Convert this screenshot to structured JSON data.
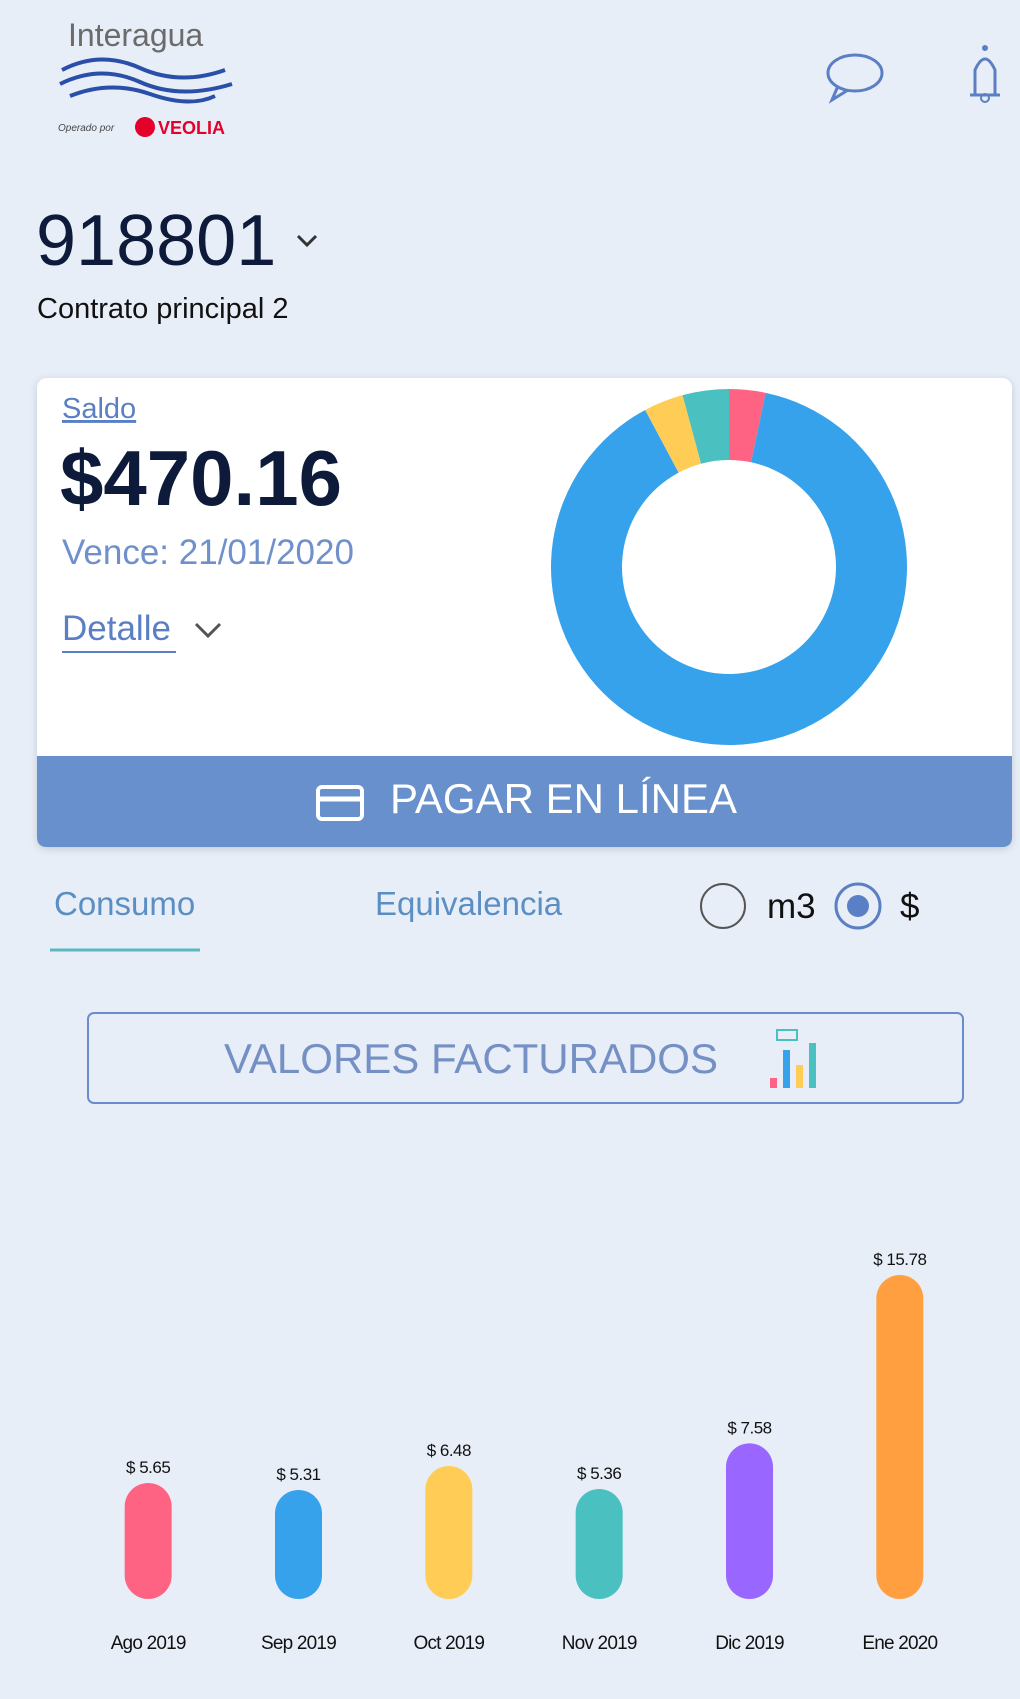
{
  "header": {
    "brand": "Interagua",
    "operator": "Operado por",
    "operator_brand": "VEOLIA"
  },
  "account": {
    "number": "918801",
    "contract": "Contrato principal 2"
  },
  "balance": {
    "label": "Saldo",
    "amount": "$470.16",
    "due": "Vence: 21/01/2020",
    "detail": "Detalle",
    "pay_button": "PAGAR EN LÍNEA"
  },
  "tabs": {
    "items": [
      "Consumo",
      "Equivalencia"
    ],
    "units": [
      "m3",
      "$"
    ]
  },
  "billed_button": "VALORES FACTURADOS",
  "chart_data": [
    {
      "type": "pie",
      "donut": true,
      "values": [
        3.3,
        88.9,
        3.6,
        4.2
      ],
      "colors": [
        "#fe6384",
        "#36a2eb",
        "#ffcd56",
        "#4bc0c0"
      ]
    },
    {
      "type": "bar",
      "categories": [
        "Ago 2019",
        "Sep 2019",
        "Oct 2019",
        "Nov 2019",
        "Dic 2019",
        "Ene 2020"
      ],
      "values": [
        5.65,
        5.31,
        6.48,
        5.36,
        7.58,
        15.78
      ],
      "value_labels": [
        "$ 5.65",
        "$ 5.31",
        "$ 6.48",
        "$ 5.36",
        "$ 7.58",
        "$ 15.78"
      ],
      "colors": [
        "#fe6384",
        "#36a2eb",
        "#ffcd56",
        "#4bc0c0",
        "#9966ff",
        "#ff9f40"
      ]
    }
  ]
}
